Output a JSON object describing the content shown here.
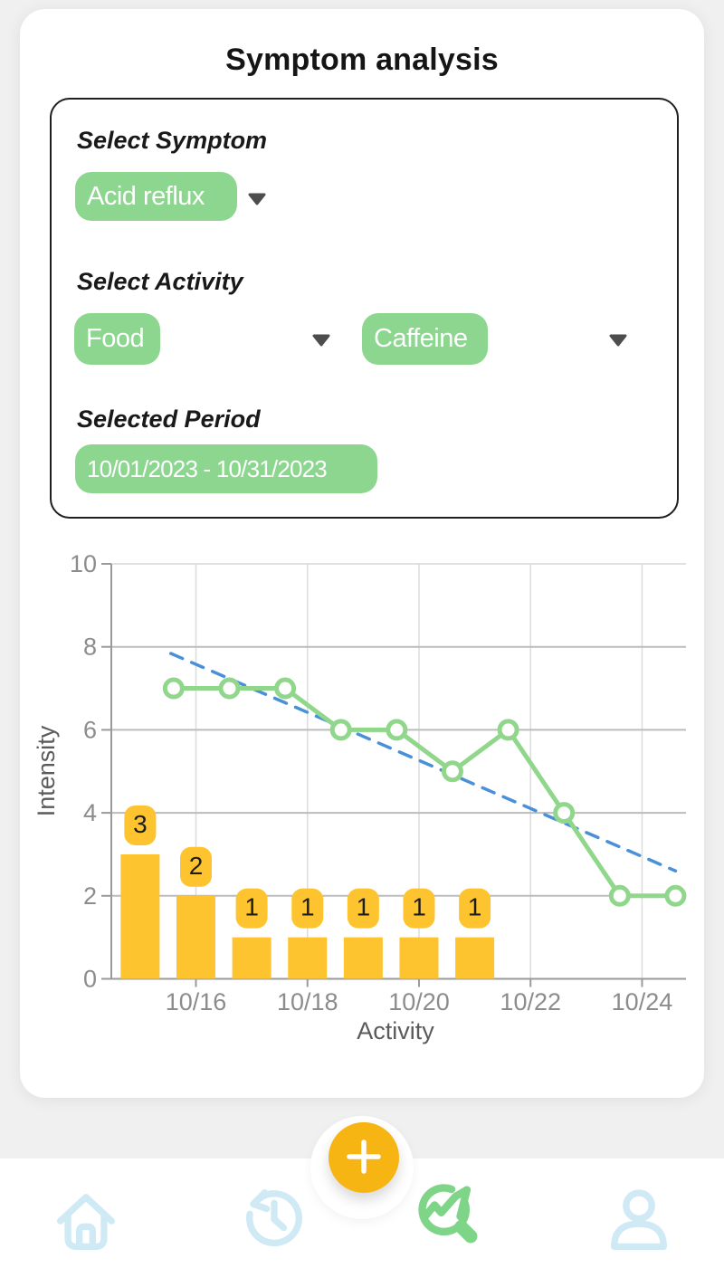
{
  "title": "Symptom analysis",
  "filters": {
    "symptom_label": "Select Symptom",
    "symptom_value": "Acid reflux",
    "activity_label": "Select Activity",
    "activity_value_1": "Food",
    "activity_value_2": "Caffeine",
    "period_label": "Selected Period",
    "period_value": "10/01/2023 - 10/31/2023"
  },
  "colors": {
    "accent-green": "#8CD68F",
    "bar-amber": "#FDC42F",
    "fab-amber": "#F6B513",
    "trend-blue": "#4A90D9",
    "line-green": "#90D78B",
    "nav-blue": "#CFE9F5",
    "nav-green": "#7ED487"
  },
  "chart_data": {
    "type": "combo",
    "title": "",
    "xlabel": "Activity",
    "ylabel": "Intensity",
    "ylim": [
      0,
      10
    ],
    "y_ticks": [
      0,
      2,
      4,
      6,
      8,
      10
    ],
    "x_ticks": [
      {
        "day": 16,
        "label": "10/16"
      },
      {
        "day": 18,
        "label": "10/18"
      },
      {
        "day": 20,
        "label": "10/20"
      },
      {
        "day": 22,
        "label": "10/22"
      },
      {
        "day": 24,
        "label": "10/24"
      }
    ],
    "grid": true,
    "legend": "none",
    "series": [
      {
        "name": "activity-count",
        "type": "bar",
        "color": "#FDC42F",
        "points": [
          {
            "day": 15,
            "value": 3,
            "label": "3"
          },
          {
            "day": 16,
            "value": 2,
            "label": "2"
          },
          {
            "day": 17,
            "value": 1,
            "label": "1"
          },
          {
            "day": 18,
            "value": 1,
            "label": "1"
          },
          {
            "day": 19,
            "value": 1,
            "label": "1"
          },
          {
            "day": 20,
            "value": 1,
            "label": "1"
          },
          {
            "day": 21,
            "value": 1,
            "label": "1"
          }
        ]
      },
      {
        "name": "symptom-intensity",
        "type": "line",
        "color": "#90D78B",
        "points": [
          {
            "day": 15.6,
            "value": 7
          },
          {
            "day": 16.6,
            "value": 7
          },
          {
            "day": 17.6,
            "value": 7
          },
          {
            "day": 18.6,
            "value": 6
          },
          {
            "day": 19.6,
            "value": 6
          },
          {
            "day": 20.6,
            "value": 5
          },
          {
            "day": 21.6,
            "value": 6
          },
          {
            "day": 22.6,
            "value": 4
          },
          {
            "day": 23.6,
            "value": 2
          },
          {
            "day": 24.6,
            "value": 2
          }
        ]
      },
      {
        "name": "trend",
        "type": "dashed-line",
        "color": "#4A90D9",
        "points": [
          {
            "day": 15.55,
            "value": 7.84
          },
          {
            "day": 24.6,
            "value": 2.6
          }
        ]
      }
    ]
  },
  "nav": {
    "icons": [
      "home-icon",
      "history-icon",
      "analysis-icon",
      "profile-icon"
    ],
    "active_icon": "analysis-icon",
    "fab_icon": "plus-icon"
  }
}
